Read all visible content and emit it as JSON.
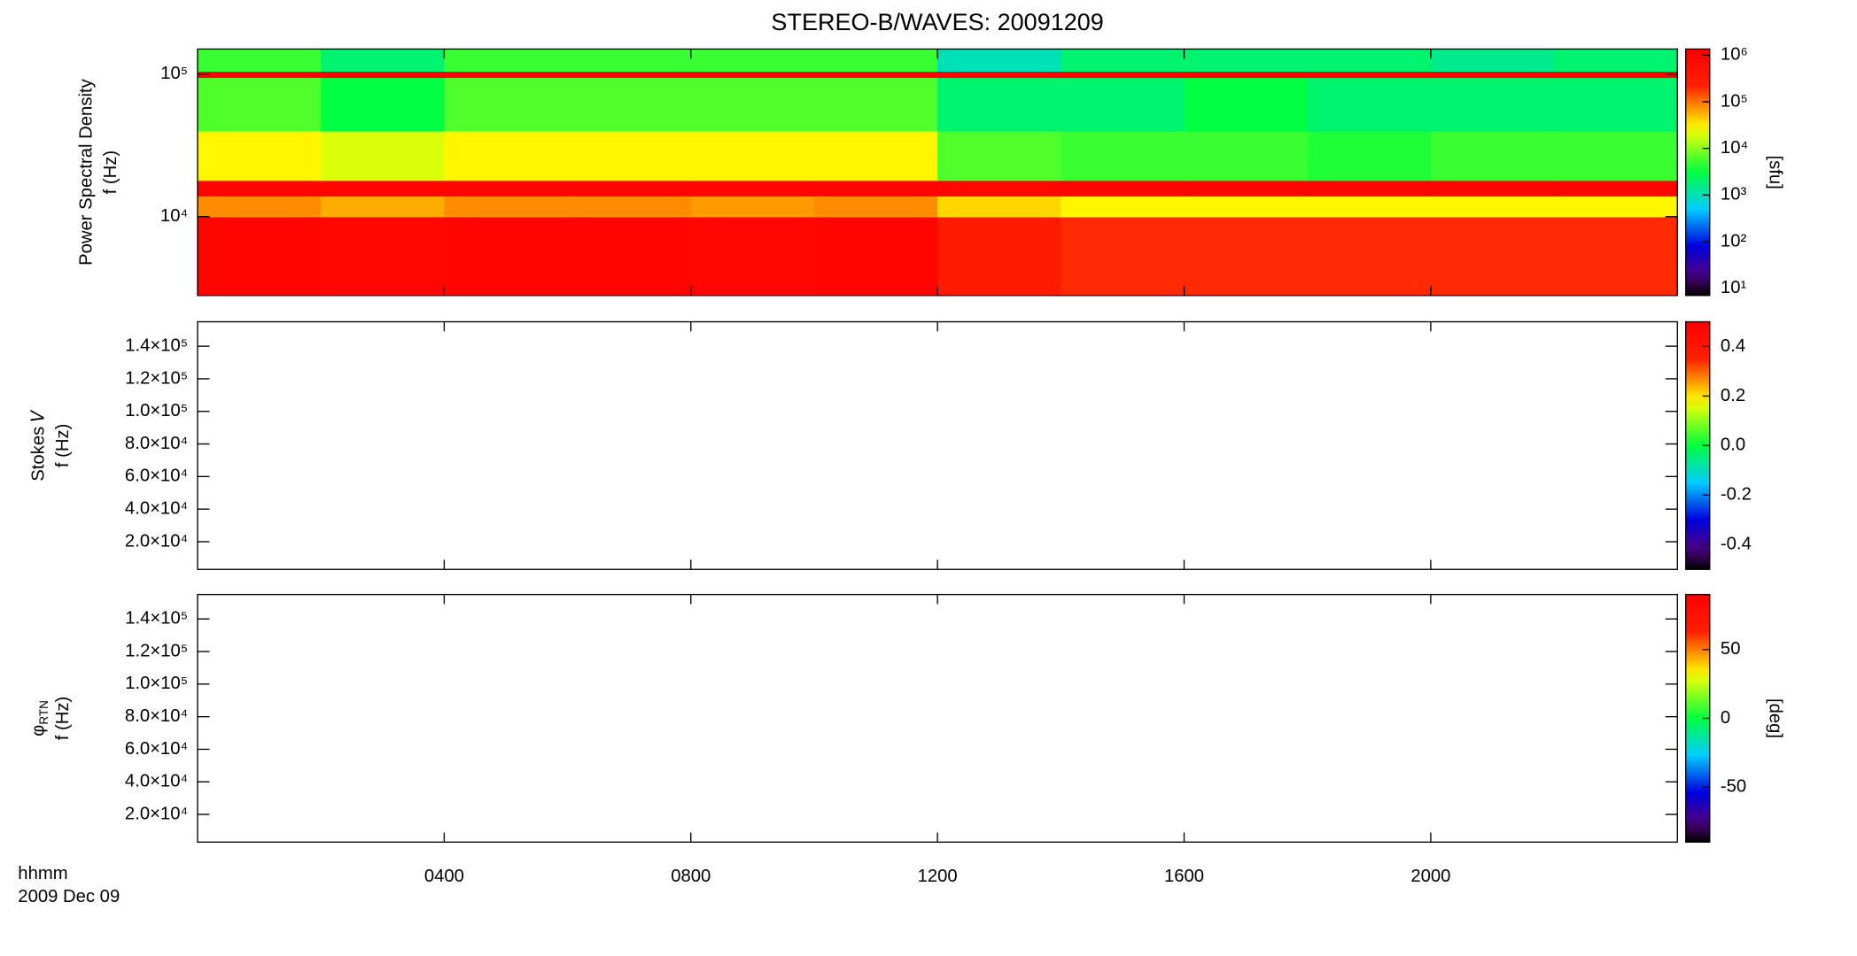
{
  "chart_data": [
    {
      "type": "heatmap",
      "title": "STEREO-B/WAVES: 20091209",
      "ylabel": "Power Spectral Density",
      "ylabel2": "f (Hz)",
      "xlim": [
        0,
        24
      ],
      "xticks": [
        4,
        8,
        12,
        16,
        20
      ],
      "ylim": [
        2800,
        150000
      ],
      "log_y": true,
      "yticks": [
        {
          "value": 10000,
          "label": "10⁴"
        },
        {
          "value": 100000,
          "label": "10⁵"
        }
      ],
      "x_edges": [
        0,
        2,
        4,
        6,
        8,
        10,
        12,
        14,
        16,
        18,
        20,
        22,
        24
      ],
      "y_edges": [
        2800,
        10000,
        14000,
        18000,
        40000,
        95000,
        105000,
        150000
      ],
      "z": [
        [
          1000000,
          900000,
          1000000,
          1000000,
          900000,
          1000000,
          300000,
          200000,
          200000,
          200000,
          200000,
          200000
        ],
        [
          80000,
          60000,
          80000,
          80000,
          70000,
          80000,
          40000,
          30000,
          30000,
          30000,
          30000,
          30000
        ],
        [
          1000000,
          1000000,
          1000000,
          1000000,
          1000000,
          1000000,
          1000000,
          1000000,
          1000000,
          1000000,
          1000000,
          1000000
        ],
        [
          30000,
          20000,
          30000,
          30000,
          30000,
          30000,
          6000,
          5000,
          5000,
          4000,
          5000,
          5000
        ],
        [
          6000,
          3000,
          6000,
          6000,
          6000,
          6000,
          2000,
          2000,
          3000,
          2000,
          2000,
          2000
        ],
        [
          1000000,
          1000000,
          1000000,
          1000000,
          1000000,
          1000000,
          1000000,
          1000000,
          1000000,
          1000000,
          1000000,
          1000000
        ],
        [
          5000,
          2000,
          5000,
          5000,
          5000,
          5000,
          1000,
          2000,
          2000,
          2000,
          1500,
          2000
        ]
      ],
      "zlim": [
        7,
        1350000
      ],
      "z_log": true,
      "colormap": "rainbow",
      "zticks": [
        {
          "value": 10,
          "label": "10¹"
        },
        {
          "value": 100,
          "label": "10²"
        },
        {
          "value": 1000,
          "label": "10³"
        },
        {
          "value": 10000,
          "label": "10⁴"
        },
        {
          "value": 100000,
          "label": "10⁵"
        },
        {
          "value": 1000000,
          "label": "10⁶"
        }
      ],
      "colorbar_label": "[sfu]"
    },
    {
      "type": "heatmap",
      "ylabel": "Stokes 𝑉",
      "ylabel2": "f (Hz)",
      "xlim": [
        0,
        24
      ],
      "xticks": [
        4,
        8,
        12,
        16,
        20
      ],
      "ylim": [
        3000,
        155000
      ],
      "log_y": false,
      "yticks": [
        {
          "value": 20000,
          "label": "2.0×10⁴"
        },
        {
          "value": 40000,
          "label": "4.0×10⁴"
        },
        {
          "value": 60000,
          "label": "6.0×10⁴"
        },
        {
          "value": 80000,
          "label": "8.0×10⁴"
        },
        {
          "value": 100000,
          "label": "1.0×10⁵"
        },
        {
          "value": 120000,
          "label": "1.2×10⁵"
        },
        {
          "value": 140000,
          "label": "1.4×10⁵"
        }
      ],
      "zlim": [
        -0.5,
        0.5
      ],
      "z_log": false,
      "colormap": "rainbow",
      "zticks": [
        -0.4,
        -0.2,
        {
          "value": 0,
          "label": "0.0"
        },
        0.2,
        0.4
      ]
    },
    {
      "type": "heatmap",
      "ylabel": "φ",
      "ylabel_sub": "RTN",
      "ylabel2": "f (Hz)",
      "xlim": [
        0,
        24
      ],
      "xticks": [
        {
          "value": 4,
          "label": "0400"
        },
        {
          "value": 8,
          "label": "0800"
        },
        {
          "value": 12,
          "label": "1200"
        },
        {
          "value": 16,
          "label": "1600"
        },
        {
          "value": 20,
          "label": "2000"
        }
      ],
      "x_label": "hhmm",
      "date_label": "2009 Dec 09",
      "ylim": [
        3000,
        155000
      ],
      "log_y": false,
      "yticks": [
        {
          "value": 20000,
          "label": "2.0×10⁴"
        },
        {
          "value": 40000,
          "label": "4.0×10⁴"
        },
        {
          "value": 60000,
          "label": "6.0×10⁴"
        },
        {
          "value": 80000,
          "label": "8.0×10⁴"
        },
        {
          "value": 100000,
          "label": "1.0×10⁵"
        },
        {
          "value": 120000,
          "label": "1.2×10⁵"
        },
        {
          "value": 140000,
          "label": "1.4×10⁵"
        }
      ],
      "zlim": [
        -90,
        90
      ],
      "z_log": false,
      "colormap": "rainbow",
      "zticks": [
        -50,
        0,
        50
      ],
      "colorbar_label": "[deg]"
    }
  ]
}
